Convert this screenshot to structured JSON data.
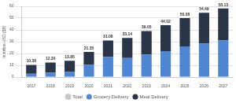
{
  "chart_data": {
    "type": "bar",
    "y_label": "in billion USD ($B)",
    "categories": [
      "2017",
      "2018",
      "2019",
      "2020",
      "2021",
      "2022",
      "2023",
      "2024",
      "2025",
      "2026",
      "2027"
    ],
    "series": [
      {
        "name": "Total",
        "type": "line",
        "marker": "none",
        "line_style": "none",
        "color": "#c8c8c8",
        "data_labels": true,
        "values": [
          10.38,
          12.3,
          13.85,
          21.35,
          31.08,
          33.14,
          39.05,
          44.02,
          50.08,
          54.49,
          58.13
        ],
        "value_labels": [
          "10.38",
          "12.30",
          "13.85",
          "21.35",
          "31.08",
          "33.14",
          "39.05",
          "44.02",
          "50.08",
          "54.49",
          "58.13"
        ]
      },
      {
        "name": "Grocery Delivery",
        "color": "#4f86d4",
        "values": [
          2.88,
          3.8,
          4.35,
          10.35,
          17.08,
          16.14,
          19.05,
          22.02,
          26.08,
          28.49,
          31.13
        ]
      },
      {
        "name": "Meal Delivery",
        "color": "#2b3548",
        "values": [
          7.5,
          8.5,
          9.5,
          11,
          14,
          17,
          20,
          22,
          24,
          26,
          27
        ]
      }
    ],
    "stacked": true,
    "ylim": [
      0,
      60
    ],
    "yticks": [
      0,
      10,
      20,
      30,
      40,
      50,
      60
    ],
    "grid": true,
    "legend": "bottom"
  }
}
